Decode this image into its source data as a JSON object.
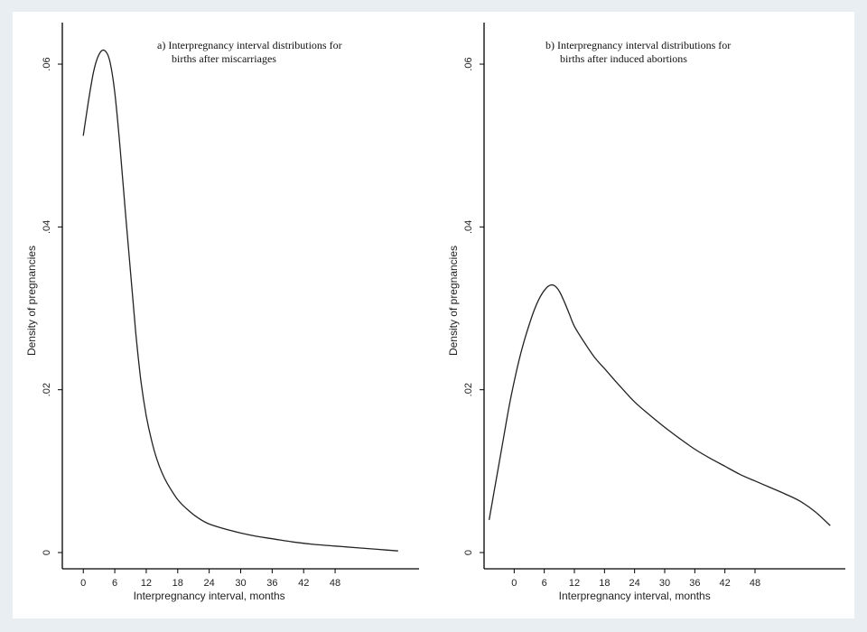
{
  "chart_data": [
    {
      "type": "line",
      "title_lines": [
        "a) Interpregnancy interval distributions for",
        "births after miscarriages"
      ],
      "xlabel": "Interpregnancy interval, months",
      "ylabel": "Density of pregnancies",
      "xlim": [
        -4,
        64
      ],
      "ylim": [
        0,
        0.062
      ],
      "xticks": [
        0,
        6,
        12,
        18,
        24,
        30,
        36,
        42,
        48
      ],
      "yticks": [
        0,
        0.02,
        0.04,
        0.06
      ],
      "ytick_labels": [
        "0",
        ".02",
        ".04",
        ".06"
      ],
      "series": [
        {
          "x": [
            0,
            1,
            2,
            3,
            4,
            5,
            6,
            7,
            8,
            9,
            10,
            11,
            12,
            13,
            14,
            15,
            16,
            18,
            20,
            22,
            24,
            27,
            30,
            33,
            36,
            40,
            44,
            48,
            52,
            56,
            60
          ],
          "y": [
            0.0512,
            0.0555,
            0.0592,
            0.0612,
            0.0617,
            0.0605,
            0.0565,
            0.0498,
            0.042,
            0.0345,
            0.027,
            0.021,
            0.0168,
            0.0138,
            0.0115,
            0.0098,
            0.0085,
            0.0065,
            0.0052,
            0.0042,
            0.0035,
            0.0029,
            0.0024,
            0.002,
            0.0017,
            0.0013,
            0.001,
            0.0008,
            0.0006,
            0.0004,
            0.0002
          ]
        }
      ]
    },
    {
      "type": "line",
      "title_lines": [
        "b) Interpregnancy interval distributions for",
        "births after induced abortions"
      ],
      "xlabel": "Interpregnancy interval, months",
      "ylabel": "Density of pregnancies",
      "xlim": [
        -6,
        66
      ],
      "ylim": [
        0,
        0.062
      ],
      "xticks": [
        0,
        6,
        12,
        18,
        24,
        30,
        36,
        42,
        48
      ],
      "yticks": [
        0,
        0.02,
        0.04,
        0.06
      ],
      "ytick_labels": [
        "0",
        ".02",
        ".04",
        ".06"
      ],
      "series": [
        {
          "x": [
            -5,
            -4,
            -3,
            -2,
            -1,
            0,
            1,
            2,
            3,
            4,
            5,
            6,
            7,
            8,
            9,
            10,
            11,
            12,
            14,
            16,
            18,
            21,
            24,
            27,
            30,
            33,
            36,
            39,
            42,
            45,
            48,
            51,
            54,
            57,
            60,
            63
          ],
          "y": [
            0.004,
            0.0075,
            0.011,
            0.0145,
            0.018,
            0.021,
            0.0237,
            0.026,
            0.028,
            0.0298,
            0.0312,
            0.0322,
            0.0328,
            0.0328,
            0.0321,
            0.0308,
            0.0293,
            0.0278,
            0.0258,
            0.024,
            0.0226,
            0.0205,
            0.0185,
            0.0169,
            0.0154,
            0.014,
            0.0127,
            0.0116,
            0.0106,
            0.0096,
            0.0088,
            0.008,
            0.0072,
            0.0063,
            0.005,
            0.0033
          ]
        }
      ]
    }
  ]
}
